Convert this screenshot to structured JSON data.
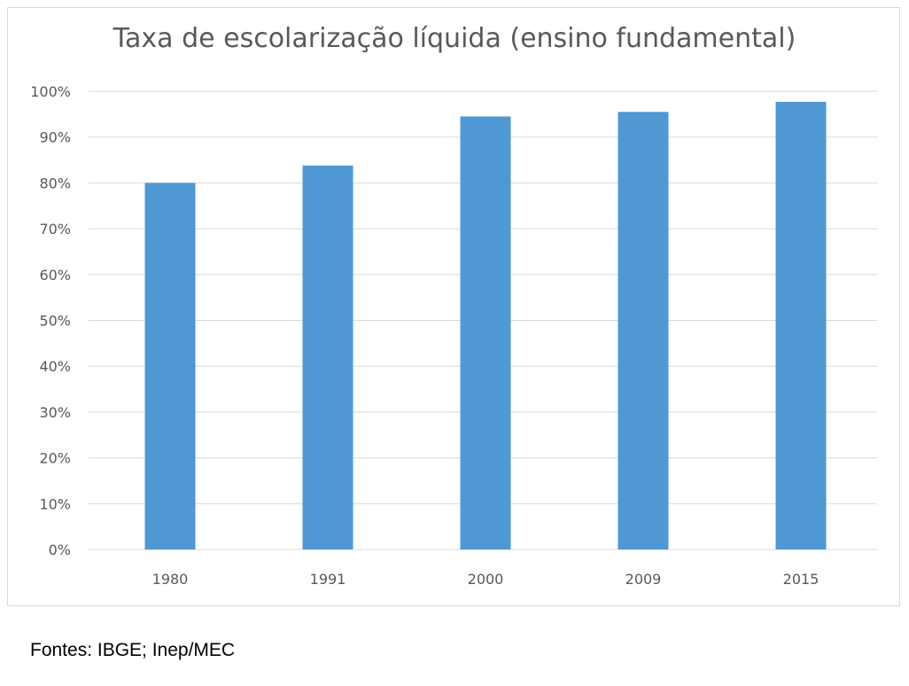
{
  "chart_data": {
    "type": "bar",
    "title": "Taxa de escolarização líquida (ensino fundamental)",
    "categories": [
      "1980",
      "1991",
      "2000",
      "2009",
      "2015"
    ],
    "values": [
      80.0,
      83.8,
      94.5,
      95.5,
      97.7
    ],
    "ylim": [
      0,
      100
    ],
    "yticks": [
      0,
      10,
      20,
      30,
      40,
      50,
      60,
      70,
      80,
      90,
      100
    ],
    "ytick_suffix": "%",
    "grid": true,
    "bar_color": "#4f98d4",
    "grid_color": "#d9d9d9"
  },
  "source": "Fontes: IBGE; Inep/MEC"
}
